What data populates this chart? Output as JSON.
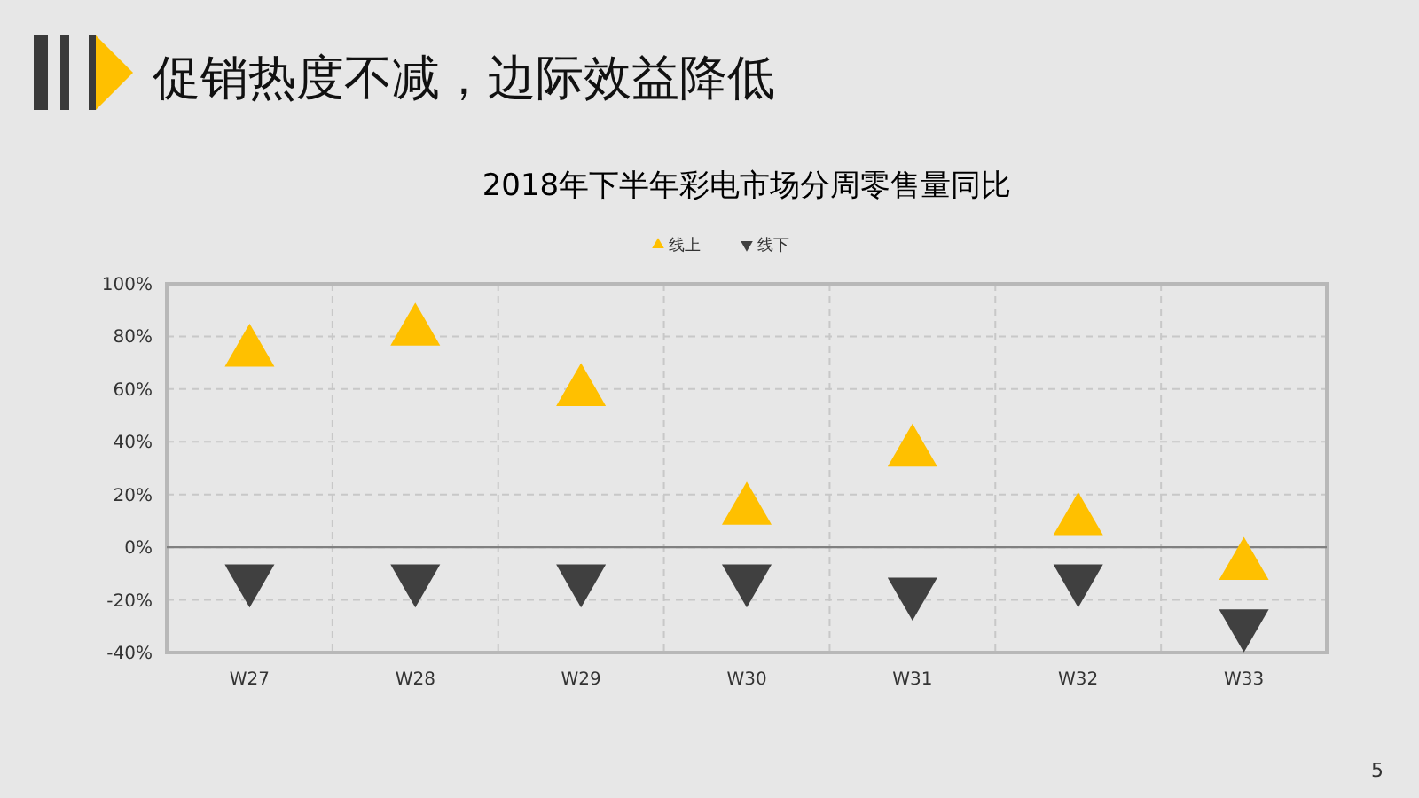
{
  "chart_data": {
    "type": "scatter",
    "title": "2018年下半年彩电市场分周零售量同比",
    "annotations": [
      "促销热度不减，边际效益降低",
      "5"
    ],
    "categories": [
      "W27",
      "W28",
      "W29",
      "W30",
      "W31",
      "W32",
      "W33"
    ],
    "series": [
      {
        "name": "线上",
        "color": "#ffc000",
        "marker": "triangle",
        "values": [
          74,
          82,
          59,
          14,
          36,
          10,
          -7
        ]
      },
      {
        "name": "线下",
        "color": "#404040",
        "marker": "triangle-down",
        "values": [
          -12,
          -12,
          -12,
          -12,
          -17,
          -12,
          -29
        ]
      }
    ],
    "ylim": [
      -40,
      100
    ],
    "yticks": [
      {
        "value": -40,
        "label": "-40%"
      },
      {
        "value": -20,
        "label": "-20%"
      },
      {
        "value": 0,
        "label": "0%"
      },
      {
        "value": 20,
        "label": "20%"
      },
      {
        "value": 40,
        "label": "40%"
      },
      {
        "value": 60,
        "label": "60%"
      },
      {
        "value": 80,
        "label": "80%"
      },
      {
        "value": 100,
        "label": "100%"
      }
    ],
    "grid": true,
    "legend": "top"
  }
}
